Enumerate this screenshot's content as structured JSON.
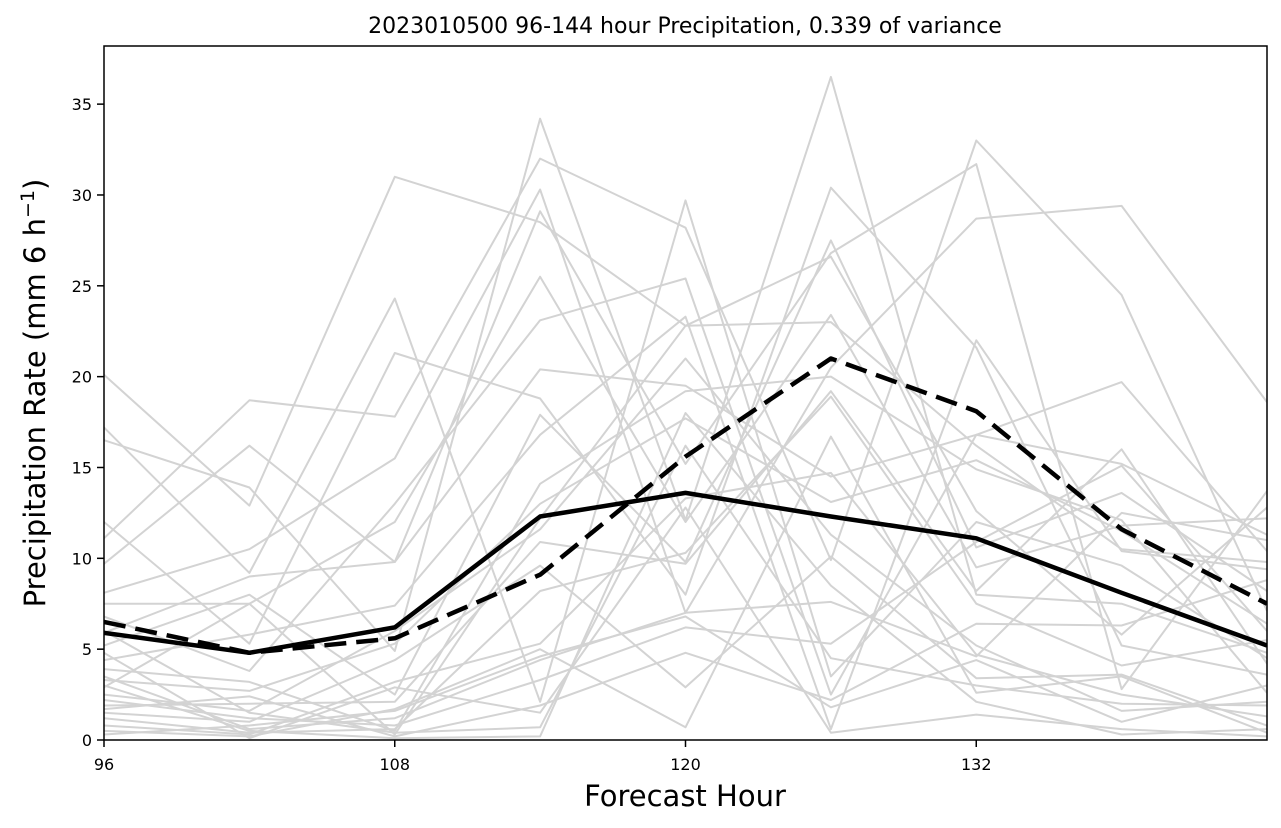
{
  "chart_data": {
    "type": "line",
    "title": "2023010500 96-144 hour Precipitation, 0.339 of variance",
    "xlabel": "Forecast Hour",
    "ylabel_main": "Precipitation Rate (mm 6 h",
    "ylabel_sup": "−1",
    "ylabel_close": ")",
    "xlim": [
      96,
      144
    ],
    "ylim": [
      0,
      38.2
    ],
    "x": [
      96,
      102,
      108,
      114,
      120,
      126,
      132,
      138,
      144
    ],
    "xticks": [
      96,
      108,
      120,
      132
    ],
    "xtick_labels": [
      "96",
      "108",
      "120",
      "132"
    ],
    "yticks": [
      0,
      5,
      10,
      15,
      20,
      25,
      30,
      35
    ],
    "ytick_labels": [
      "0",
      "5",
      "10",
      "15",
      "20",
      "25",
      "30",
      "35"
    ],
    "grid": false,
    "legend": "none",
    "colors": {
      "ensemble": "#d3d3d3",
      "highlight": "#000000"
    },
    "highlight_series": [
      {
        "style": "solid",
        "values": [
          5.9,
          4.8,
          6.2,
          12.3,
          13.6,
          12.3,
          11.1,
          8.1,
          5.2
        ]
      },
      {
        "style": "dashed",
        "values": [
          6.5,
          4.8,
          5.6,
          9.1,
          15.6,
          21.0,
          18.1,
          11.6,
          7.5
        ]
      }
    ],
    "ensemble_series": [
      [
        20.1,
        12.9,
        31.0,
        28.5,
        22.8,
        23.0,
        16.2,
        10.5,
        9.8
      ],
      [
        17.2,
        9.2,
        24.3,
        2.1,
        29.7,
        3.5,
        12.0,
        9.6,
        4.5
      ],
      [
        16.5,
        13.9,
        4.9,
        34.2,
        12.1,
        36.5,
        8.0,
        7.5,
        4.8
      ],
      [
        12.0,
        5.3,
        21.3,
        18.8,
        8.0,
        30.4,
        21.6,
        5.2,
        3.6
      ],
      [
        11.1,
        18.7,
        17.8,
        32.0,
        28.2,
        9.9,
        33.0,
        24.5,
        7.1
      ],
      [
        9.7,
        16.2,
        9.8,
        29.1,
        15.2,
        26.8,
        31.7,
        2.8,
        13.7
      ],
      [
        8.1,
        10.5,
        15.5,
        30.3,
        7.0,
        20.5,
        28.7,
        29.4,
        18.6
      ],
      [
        7.5,
        7.5,
        12.0,
        25.5,
        12.0,
        23.4,
        9.5,
        11.8,
        12.2
      ],
      [
        6.8,
        3.8,
        13.0,
        23.1,
        25.4,
        2.5,
        16.8,
        19.7,
        10.4
      ],
      [
        5.9,
        9.0,
        9.8,
        20.4,
        19.5,
        14.5,
        16.8,
        15.2,
        11.3
      ],
      [
        5.2,
        8.0,
        2.5,
        17.9,
        9.8,
        27.5,
        10.6,
        13.6,
        8.2
      ],
      [
        4.4,
        5.8,
        7.4,
        16.8,
        23.3,
        0.6,
        22.0,
        10.4,
        9.4
      ],
      [
        3.9,
        3.2,
        0.5,
        14.1,
        19.2,
        20.0,
        14.9,
        12.1,
        2.6
      ],
      [
        3.3,
        2.7,
        5.3,
        13.0,
        17.7,
        13.1,
        15.4,
        11.5,
        6.4
      ],
      [
        2.9,
        7.5,
        0.3,
        12.2,
        22.8,
        26.6,
        12.6,
        5.8,
        12.8
      ],
      [
        2.5,
        1.6,
        6.0,
        11.6,
        21.0,
        11.3,
        5.2,
        1.6,
        2.1
      ],
      [
        1.9,
        2.0,
        2.1,
        10.9,
        9.7,
        19.2,
        8.2,
        16.0,
        4.2
      ],
      [
        1.5,
        1.0,
        4.4,
        9.6,
        2.9,
        10.1,
        3.4,
        3.6,
        0.8
      ],
      [
        1.2,
        0.4,
        0.6,
        8.2,
        10.3,
        18.9,
        7.5,
        4.1,
        5.5
      ],
      [
        0.8,
        0.3,
        3.2,
        5.3,
        13.3,
        14.7,
        4.7,
        2.5,
        1.3
      ],
      [
        0.5,
        0.2,
        1.7,
        5.0,
        0.7,
        16.7,
        2.6,
        3.5,
        0.4
      ],
      [
        0.3,
        0.8,
        1.6,
        4.6,
        6.8,
        1.8,
        4.4,
        1.0,
        3.0
      ],
      [
        3.5,
        0.6,
        1.2,
        4.4,
        7.0,
        7.6,
        4.6,
        12.5,
        11.0
      ],
      [
        2.2,
        1.2,
        0.8,
        3.3,
        6.2,
        5.3,
        10.9,
        15.1,
        6.0
      ],
      [
        1.7,
        2.4,
        0.2,
        1.9,
        4.8,
        2.2,
        6.4,
        6.3,
        8.8
      ],
      [
        4.8,
        0.1,
        2.9,
        1.5,
        12.8,
        0.4,
        1.4,
        0.6,
        0.2
      ],
      [
        6.0,
        1.5,
        0.4,
        0.7,
        16.2,
        4.5,
        3.0,
        2.0,
        1.9
      ],
      [
        3.0,
        0.5,
        0.1,
        0.2,
        18.0,
        8.5,
        2.1,
        0.3,
        0.6
      ]
    ]
  }
}
